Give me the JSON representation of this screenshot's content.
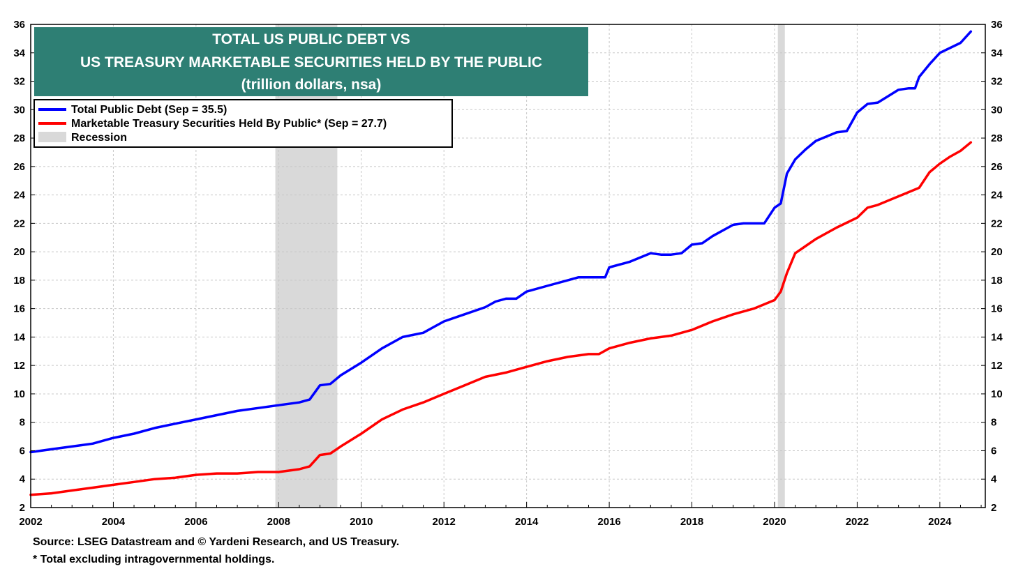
{
  "chart_data": {
    "type": "line",
    "title_lines": [
      "TOTAL US PUBLIC DEBT VS",
      "US TREASURY MARKETABLE SECURITIES HELD BY THE PUBLIC",
      "(trillion dollars, nsa)"
    ],
    "xlabel": "",
    "ylabel": "",
    "xlim": [
      2002,
      2025.1
    ],
    "ylim": [
      2,
      36
    ],
    "y_ticks": [
      "36",
      "34",
      "32",
      "30",
      "28",
      "26",
      "24",
      "22",
      "20",
      "18",
      "16",
      "14",
      "12",
      "10",
      "8",
      "6",
      "4",
      "2"
    ],
    "x_ticks": [
      "2002",
      "2004",
      "2006",
      "2008",
      "2010",
      "2012",
      "2014",
      "2016",
      "2018",
      "2020",
      "2022",
      "2024"
    ],
    "grid": true,
    "legend_placement": "top-left",
    "legend": [
      {
        "label": "Total Public Debt (Sep = 35.5)",
        "color": "#0000ff",
        "kind": "line"
      },
      {
        "label": "Marketable Treasury Securities Held By Public* (Sep = 27.7)",
        "color": "#ff0000",
        "kind": "line"
      },
      {
        "label": "Recession",
        "color": "#d9d9d9",
        "kind": "box"
      }
    ],
    "recessions": [
      [
        2007.92,
        2009.42
      ],
      [
        2020.08,
        2020.25
      ]
    ],
    "series": [
      {
        "name": "Total Public Debt (Sep = 35.5)",
        "color": "#0000ff",
        "x": [
          2002.0,
          2002.5,
          2003.0,
          2003.5,
          2004.0,
          2004.5,
          2005.0,
          2005.5,
          2006.0,
          2006.5,
          2007.0,
          2007.5,
          2008.0,
          2008.5,
          2008.75,
          2009.0,
          2009.25,
          2009.5,
          2010.0,
          2010.5,
          2011.0,
          2011.5,
          2011.75,
          2012.0,
          2012.5,
          2013.0,
          2013.25,
          2013.5,
          2013.75,
          2014.0,
          2014.5,
          2015.0,
          2015.25,
          2015.5,
          2015.75,
          2015.9,
          2016.0,
          2016.5,
          2017.0,
          2017.25,
          2017.5,
          2017.75,
          2018.0,
          2018.25,
          2018.5,
          2019.0,
          2019.25,
          2019.5,
          2019.75,
          2020.0,
          2020.15,
          2020.3,
          2020.5,
          2020.75,
          2021.0,
          2021.5,
          2021.75,
          2022.0,
          2022.25,
          2022.5,
          2023.0,
          2023.25,
          2023.4,
          2023.5,
          2023.75,
          2024.0,
          2024.5,
          2024.75
        ],
        "values": [
          5.9,
          6.1,
          6.3,
          6.5,
          6.9,
          7.2,
          7.6,
          7.9,
          8.2,
          8.5,
          8.8,
          9.0,
          9.2,
          9.4,
          9.6,
          10.6,
          10.7,
          11.3,
          12.2,
          13.2,
          14.0,
          14.3,
          14.7,
          15.1,
          15.6,
          16.1,
          16.5,
          16.7,
          16.7,
          17.2,
          17.6,
          18.0,
          18.2,
          18.2,
          18.2,
          18.2,
          18.9,
          19.3,
          19.9,
          19.8,
          19.8,
          19.9,
          20.5,
          20.6,
          21.1,
          21.9,
          22.0,
          22.0,
          22.0,
          23.1,
          23.4,
          25.5,
          26.5,
          27.2,
          27.8,
          28.4,
          28.5,
          29.8,
          30.4,
          30.5,
          31.4,
          31.5,
          31.5,
          32.3,
          33.2,
          34.0,
          34.7,
          35.5
        ]
      },
      {
        "name": "Marketable Treasury Securities Held By Public* (Sep = 27.7)",
        "color": "#ff0000",
        "x": [
          2002.0,
          2002.5,
          2003.0,
          2003.5,
          2004.0,
          2004.5,
          2005.0,
          2005.5,
          2006.0,
          2006.5,
          2007.0,
          2007.5,
          2008.0,
          2008.5,
          2008.75,
          2009.0,
          2009.25,
          2009.5,
          2010.0,
          2010.5,
          2011.0,
          2011.5,
          2012.0,
          2012.5,
          2013.0,
          2013.5,
          2014.0,
          2014.5,
          2015.0,
          2015.5,
          2015.75,
          2016.0,
          2016.5,
          2017.0,
          2017.5,
          2018.0,
          2018.5,
          2019.0,
          2019.5,
          2020.0,
          2020.15,
          2020.3,
          2020.5,
          2020.75,
          2021.0,
          2021.5,
          2022.0,
          2022.25,
          2022.5,
          2023.0,
          2023.25,
          2023.5,
          2023.75,
          2024.0,
          2024.25,
          2024.5,
          2024.75
        ],
        "values": [
          2.9,
          3.0,
          3.2,
          3.4,
          3.6,
          3.8,
          4.0,
          4.1,
          4.3,
          4.4,
          4.4,
          4.5,
          4.5,
          4.7,
          4.9,
          5.7,
          5.8,
          6.3,
          7.2,
          8.2,
          8.9,
          9.4,
          10.0,
          10.6,
          11.2,
          11.5,
          11.9,
          12.3,
          12.6,
          12.8,
          12.8,
          13.2,
          13.6,
          13.9,
          14.1,
          14.5,
          15.1,
          15.6,
          16.0,
          16.6,
          17.2,
          18.5,
          19.9,
          20.4,
          20.9,
          21.7,
          22.4,
          23.1,
          23.3,
          23.9,
          24.2,
          24.5,
          25.6,
          26.2,
          26.7,
          27.1,
          27.7
        ]
      }
    ]
  },
  "footnotes": {
    "source": "Source: LSEG Datastream and © Yardeni Research, and US Treasury.",
    "note": "* Total excluding intragovernmental holdings."
  }
}
